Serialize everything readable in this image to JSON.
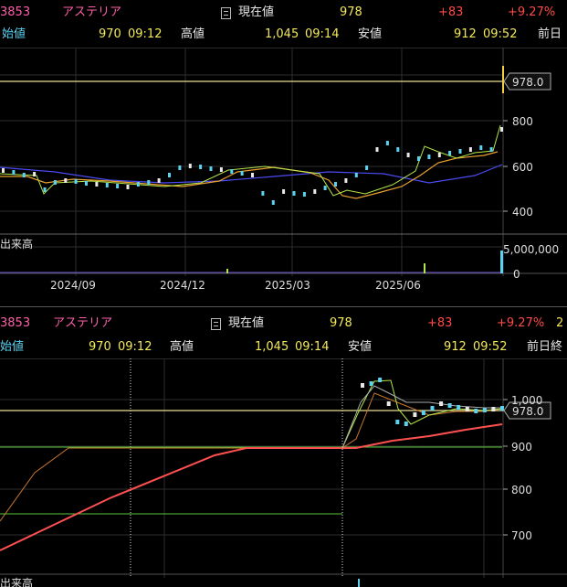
{
  "upper": {
    "header": {
      "code": "3853",
      "name": "アステリア",
      "current_label": "現在値",
      "current_value": "978",
      "change": "+83",
      "change_pct": "+9.27%"
    },
    "sub": {
      "open_label": "始値",
      "open_value": "970",
      "open_time": "09:12",
      "high_label": "高値",
      "high_value": "1,045",
      "high_time": "09:14",
      "low_label": "安値",
      "low_value": "912",
      "low_time": "09:52",
      "prev_label": "前日"
    },
    "price_tag": "978.0",
    "y_ticks": [
      "800",
      "600",
      "400"
    ],
    "volume_label": "出来高",
    "volume_ticks": [
      "5,000,000",
      "0"
    ],
    "x_ticks": [
      "2024/09",
      "2024/12",
      "2025/03",
      "2025/06"
    ]
  },
  "lower": {
    "header": {
      "code": "3853",
      "name": "アステリア",
      "current_label": "現在値",
      "current_value": "978",
      "change": "+83",
      "change_pct": "+9.27%",
      "extra": "2"
    },
    "sub": {
      "open_label": "始値",
      "open_value": "970",
      "open_time": "09:12",
      "high_label": "高値",
      "high_value": "1,045",
      "high_time": "09:14",
      "low_label": "安値",
      "low_value": "912",
      "low_time": "09:52",
      "prev_label": "前日終"
    },
    "price_tag": "978.0",
    "y_ticks": [
      "1,000",
      "900",
      "800",
      "700"
    ],
    "volume_label": "出来高"
  },
  "colors": {
    "background": "#000000",
    "pink": "#ff5fa8",
    "yellow": "#f2e85a",
    "red": "#ff4a4a",
    "candle_up": "#5ad2f0",
    "ma_short": "#e8a030",
    "ma_long": "#5050ff",
    "ma_green": "#b4e64a",
    "ma_red": "#ff5050"
  }
}
